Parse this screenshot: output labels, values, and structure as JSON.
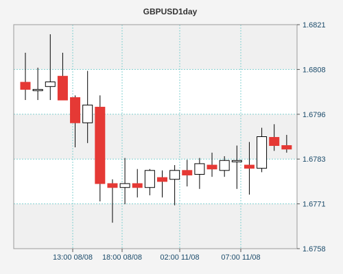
{
  "chart_data": {
    "type": "candlestick",
    "title": "GBPUSD1day",
    "xlabel": "",
    "ylabel": "",
    "ylim": [
      1.6758,
      1.6821
    ],
    "y_ticks": [
      "1.6821",
      "1.6808",
      "1.6796",
      "1.6783",
      "1.6771",
      "1.6758"
    ],
    "x_ticks": [
      "13:00 08/08",
      "18:00 08/08",
      "02:00 11/08",
      "07:00 11/08"
    ],
    "grid": true,
    "colors": {
      "up_fill": "#ffffff",
      "down_fill": "#e53935",
      "wick": "#000000",
      "grid": "#7fcfcf",
      "band_light": "#ffffff",
      "band_alt": "#f0f0f0",
      "axis_text": "#1a4a6a"
    },
    "candles": [
      {
        "open": 1.68048,
        "high": 1.68131,
        "low": 1.67998,
        "close": 1.68028
      },
      {
        "open": 1.68028,
        "high": 1.68089,
        "low": 1.67998,
        "close": 1.68028
      },
      {
        "open": 1.68036,
        "high": 1.68183,
        "low": 1.67998,
        "close": 1.68049
      },
      {
        "open": 1.68065,
        "high": 1.68131,
        "low": 1.67998,
        "close": 1.67998
      },
      {
        "open": 1.68005,
        "high": 1.68011,
        "low": 1.67865,
        "close": 1.67934
      },
      {
        "open": 1.67934,
        "high": 1.6808,
        "low": 1.67877,
        "close": 1.67984
      },
      {
        "open": 1.67978,
        "high": 1.68011,
        "low": 1.67713,
        "close": 1.67763
      },
      {
        "open": 1.67763,
        "high": 1.67775,
        "low": 1.67653,
        "close": 1.67752
      },
      {
        "open": 1.67752,
        "high": 1.67835,
        "low": 1.67705,
        "close": 1.67763
      },
      {
        "open": 1.67763,
        "high": 1.67804,
        "low": 1.67724,
        "close": 1.67752
      },
      {
        "open": 1.67752,
        "high": 1.67804,
        "low": 1.6773,
        "close": 1.678
      },
      {
        "open": 1.6778,
        "high": 1.678,
        "low": 1.67724,
        "close": 1.67769
      },
      {
        "open": 1.67775,
        "high": 1.67815,
        "low": 1.67702,
        "close": 1.678
      },
      {
        "open": 1.678,
        "high": 1.6783,
        "low": 1.67755,
        "close": 1.67787
      },
      {
        "open": 1.67789,
        "high": 1.67835,
        "low": 1.67748,
        "close": 1.67819
      },
      {
        "open": 1.67815,
        "high": 1.6785,
        "low": 1.67782,
        "close": 1.67804
      },
      {
        "open": 1.678,
        "high": 1.6784,
        "low": 1.67782,
        "close": 1.67828
      },
      {
        "open": 1.67828,
        "high": 1.6787,
        "low": 1.67748,
        "close": 1.67828
      },
      {
        "open": 1.67815,
        "high": 1.6788,
        "low": 1.67732,
        "close": 1.67806
      },
      {
        "open": 1.67806,
        "high": 1.6792,
        "low": 1.67795,
        "close": 1.67895
      },
      {
        "open": 1.67893,
        "high": 1.6793,
        "low": 1.67855,
        "close": 1.6787
      },
      {
        "open": 1.6787,
        "high": 1.679,
        "low": 1.6785,
        "close": 1.6786
      }
    ]
  }
}
